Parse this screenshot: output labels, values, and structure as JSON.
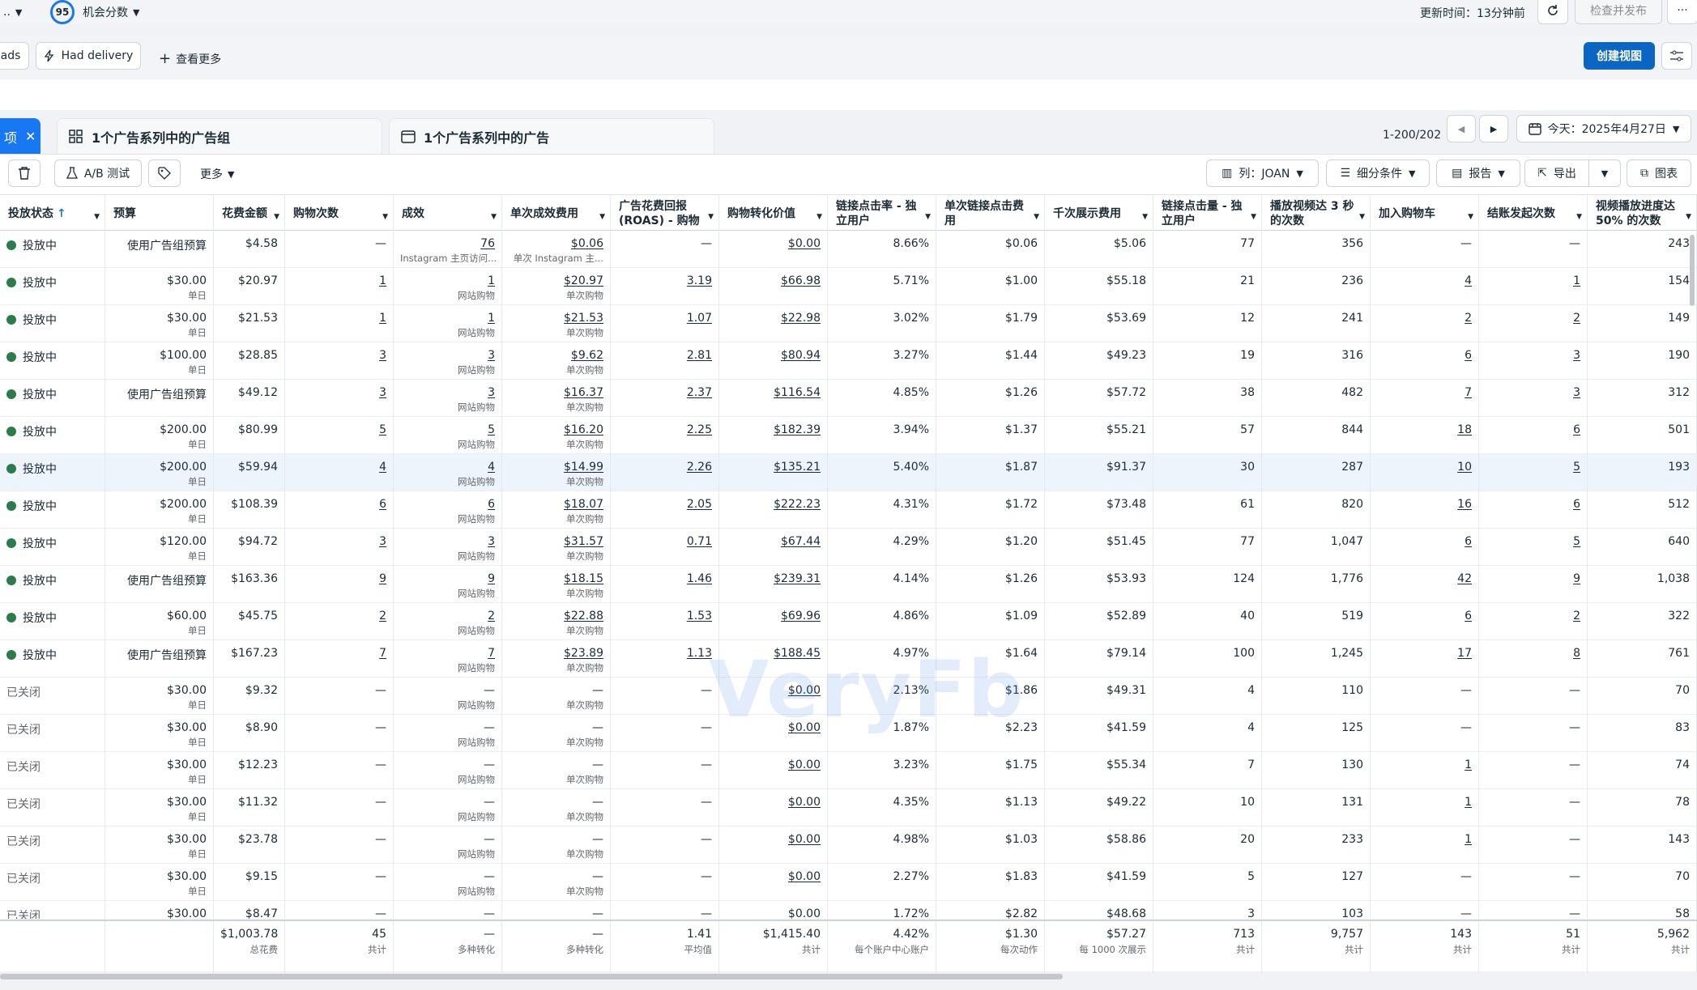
{
  "top": {
    "score": "95",
    "score_label": "机会分数",
    "update_time": "更新时间：13分钟前",
    "review_publish": "检查并发布",
    "more_icon": "more-icon"
  },
  "filters": {
    "chip_ads": "ads",
    "chip_delivery": "Had delivery",
    "view_more": "查看更多",
    "create_view": "创建视图"
  },
  "tabs": {
    "selected": "项",
    "adsets": "1个广告系列中的广告组",
    "ads": "1个广告系列中的广告",
    "pagination": "1-200/202",
    "date": "今天：2025年4月27日"
  },
  "toolbar": {
    "ab_test": "A/B 测试",
    "more": "更多",
    "columns": "列：JOAN",
    "breakdown": "细分条件",
    "report": "报告",
    "export": "导出",
    "chart": "图表"
  },
  "columns": [
    "投放状态",
    "预算",
    "花费金额",
    "购物次数",
    "成效",
    "单次成效费用",
    "广告花费回报 (ROAS) - 购物",
    "购物转化价值",
    "链接点击率 - 独立用户",
    "单次链接点击费用",
    "千次展示费用",
    "链接点击量 - 独立用户",
    "播放视频达 3 秒的次数",
    "加入购物车",
    "结账发起次数",
    "视频播放进度达 50% 的次数"
  ],
  "rows": [
    {
      "status": "投放中",
      "budget": "使用广告组预算",
      "budget_sub": "",
      "spend": "$4.58",
      "purchases": "—",
      "results": "76",
      "results_sub": "Instagram 主页访问...",
      "cpr": "$0.06",
      "cpr_sub": "单次 Instagram 主...",
      "roas": "—",
      "value": "$0.00",
      "ctr": "8.66%",
      "cpc": "$0.06",
      "cpm": "$5.06",
      "clicks": "77",
      "plays": "356",
      "atc": "—",
      "checkout": "—",
      "v50": "243"
    },
    {
      "status": "投放中",
      "budget": "$30.00",
      "budget_sub": "单日",
      "spend": "$20.97",
      "purchases": "1",
      "results": "1",
      "results_sub": "网站购物",
      "cpr": "$20.97",
      "cpr_sub": "单次购物",
      "roas": "3.19",
      "value": "$66.98",
      "ctr": "5.71%",
      "cpc": "$1.00",
      "cpm": "$55.18",
      "clicks": "21",
      "plays": "236",
      "atc": "4",
      "checkout": "1",
      "v50": "154"
    },
    {
      "status": "投放中",
      "budget": "$30.00",
      "budget_sub": "单日",
      "spend": "$21.53",
      "purchases": "1",
      "results": "1",
      "results_sub": "网站购物",
      "cpr": "$21.53",
      "cpr_sub": "单次购物",
      "roas": "1.07",
      "value": "$22.98",
      "ctr": "3.02%",
      "cpc": "$1.79",
      "cpm": "$53.69",
      "clicks": "12",
      "plays": "241",
      "atc": "2",
      "checkout": "2",
      "v50": "149"
    },
    {
      "status": "投放中",
      "budget": "$100.00",
      "budget_sub": "单日",
      "spend": "$28.85",
      "purchases": "3",
      "results": "3",
      "results_sub": "网站购物",
      "cpr": "$9.62",
      "cpr_sub": "单次购物",
      "roas": "2.81",
      "value": "$80.94",
      "ctr": "3.27%",
      "cpc": "$1.44",
      "cpm": "$49.23",
      "clicks": "19",
      "plays": "316",
      "atc": "6",
      "checkout": "3",
      "v50": "190"
    },
    {
      "status": "投放中",
      "budget": "使用广告组预算",
      "budget_sub": "",
      "spend": "$49.12",
      "purchases": "3",
      "results": "3",
      "results_sub": "网站购物",
      "cpr": "$16.37",
      "cpr_sub": "单次购物",
      "roas": "2.37",
      "value": "$116.54",
      "ctr": "4.85%",
      "cpc": "$1.26",
      "cpm": "$57.72",
      "clicks": "38",
      "plays": "482",
      "atc": "7",
      "checkout": "3",
      "v50": "312"
    },
    {
      "status": "投放中",
      "budget": "$200.00",
      "budget_sub": "单日",
      "spend": "$80.99",
      "purchases": "5",
      "results": "5",
      "results_sub": "网站购物",
      "cpr": "$16.20",
      "cpr_sub": "单次购物",
      "roas": "2.25",
      "value": "$182.39",
      "ctr": "3.94%",
      "cpc": "$1.37",
      "cpm": "$55.21",
      "clicks": "57",
      "plays": "844",
      "atc": "18",
      "checkout": "6",
      "v50": "501"
    },
    {
      "status": "投放中",
      "budget": "$200.00",
      "budget_sub": "单日",
      "spend": "$59.94",
      "purchases": "4",
      "results": "4",
      "results_sub": "网站购物",
      "cpr": "$14.99",
      "cpr_sub": "单次购物",
      "roas": "2.26",
      "value": "$135.21",
      "ctr": "5.40%",
      "cpc": "$1.87",
      "cpm": "$91.37",
      "clicks": "30",
      "plays": "287",
      "atc": "10",
      "checkout": "5",
      "v50": "193"
    },
    {
      "status": "投放中",
      "budget": "$200.00",
      "budget_sub": "单日",
      "spend": "$108.39",
      "purchases": "6",
      "results": "6",
      "results_sub": "网站购物",
      "cpr": "$18.07",
      "cpr_sub": "单次购物",
      "roas": "2.05",
      "value": "$222.23",
      "ctr": "4.31%",
      "cpc": "$1.72",
      "cpm": "$73.48",
      "clicks": "61",
      "plays": "820",
      "atc": "16",
      "checkout": "6",
      "v50": "512"
    },
    {
      "status": "投放中",
      "budget": "$120.00",
      "budget_sub": "单日",
      "spend": "$94.72",
      "purchases": "3",
      "results": "3",
      "results_sub": "网站购物",
      "cpr": "$31.57",
      "cpr_sub": "单次购物",
      "roas": "0.71",
      "value": "$67.44",
      "ctr": "4.29%",
      "cpc": "$1.20",
      "cpm": "$51.45",
      "clicks": "77",
      "plays": "1,047",
      "atc": "6",
      "checkout": "5",
      "v50": "640"
    },
    {
      "status": "投放中",
      "budget": "使用广告组预算",
      "budget_sub": "",
      "spend": "$163.36",
      "purchases": "9",
      "results": "9",
      "results_sub": "网站购物",
      "cpr": "$18.15",
      "cpr_sub": "单次购物",
      "roas": "1.46",
      "value": "$239.31",
      "ctr": "4.14%",
      "cpc": "$1.26",
      "cpm": "$53.93",
      "clicks": "124",
      "plays": "1,776",
      "atc": "42",
      "checkout": "9",
      "v50": "1,038"
    },
    {
      "status": "投放中",
      "budget": "$60.00",
      "budget_sub": "单日",
      "spend": "$45.75",
      "purchases": "2",
      "results": "2",
      "results_sub": "网站购物",
      "cpr": "$22.88",
      "cpr_sub": "单次购物",
      "roas": "1.53",
      "value": "$69.96",
      "ctr": "4.86%",
      "cpc": "$1.09",
      "cpm": "$52.89",
      "clicks": "40",
      "plays": "519",
      "atc": "6",
      "checkout": "2",
      "v50": "322"
    },
    {
      "status": "投放中",
      "budget": "使用广告组预算",
      "budget_sub": "",
      "spend": "$167.23",
      "purchases": "7",
      "results": "7",
      "results_sub": "网站购物",
      "cpr": "$23.89",
      "cpr_sub": "单次购物",
      "roas": "1.13",
      "value": "$188.45",
      "ctr": "4.97%",
      "cpc": "$1.64",
      "cpm": "$79.14",
      "clicks": "100",
      "plays": "1,245",
      "atc": "17",
      "checkout": "8",
      "v50": "761"
    },
    {
      "status": "已关闭",
      "budget": "$30.00",
      "budget_sub": "单日",
      "spend": "$9.32",
      "purchases": "—",
      "results": "—",
      "results_sub": "网站购物",
      "cpr": "—",
      "cpr_sub": "单次购物",
      "roas": "—",
      "value": "$0.00",
      "ctr": "2.13%",
      "cpc": "$1.86",
      "cpm": "$49.31",
      "clicks": "4",
      "plays": "110",
      "atc": "—",
      "checkout": "—",
      "v50": "70"
    },
    {
      "status": "已关闭",
      "budget": "$30.00",
      "budget_sub": "单日",
      "spend": "$8.90",
      "purchases": "—",
      "results": "—",
      "results_sub": "网站购物",
      "cpr": "—",
      "cpr_sub": "单次购物",
      "roas": "—",
      "value": "$0.00",
      "ctr": "1.87%",
      "cpc": "$2.23",
      "cpm": "$41.59",
      "clicks": "4",
      "plays": "125",
      "atc": "—",
      "checkout": "—",
      "v50": "83"
    },
    {
      "status": "已关闭",
      "budget": "$30.00",
      "budget_sub": "单日",
      "spend": "$12.23",
      "purchases": "—",
      "results": "—",
      "results_sub": "网站购物",
      "cpr": "—",
      "cpr_sub": "单次购物",
      "roas": "—",
      "value": "$0.00",
      "ctr": "3.23%",
      "cpc": "$1.75",
      "cpm": "$55.34",
      "clicks": "7",
      "plays": "130",
      "atc": "1",
      "checkout": "—",
      "v50": "74"
    },
    {
      "status": "已关闭",
      "budget": "$30.00",
      "budget_sub": "单日",
      "spend": "$11.32",
      "purchases": "—",
      "results": "—",
      "results_sub": "网站购物",
      "cpr": "—",
      "cpr_sub": "单次购物",
      "roas": "—",
      "value": "$0.00",
      "ctr": "4.35%",
      "cpc": "$1.13",
      "cpm": "$49.22",
      "clicks": "10",
      "plays": "131",
      "atc": "1",
      "checkout": "—",
      "v50": "78"
    },
    {
      "status": "已关闭",
      "budget": "$30.00",
      "budget_sub": "单日",
      "spend": "$23.78",
      "purchases": "—",
      "results": "—",
      "results_sub": "网站购物",
      "cpr": "—",
      "cpr_sub": "单次购物",
      "roas": "—",
      "value": "$0.00",
      "ctr": "4.98%",
      "cpc": "$1.03",
      "cpm": "$58.86",
      "clicks": "20",
      "plays": "233",
      "atc": "1",
      "checkout": "—",
      "v50": "143"
    },
    {
      "status": "已关闭",
      "budget": "$30.00",
      "budget_sub": "单日",
      "spend": "$9.15",
      "purchases": "—",
      "results": "—",
      "results_sub": "网站购物",
      "cpr": "—",
      "cpr_sub": "单次购物",
      "roas": "—",
      "value": "$0.00",
      "ctr": "2.27%",
      "cpc": "$1.83",
      "cpm": "$41.59",
      "clicks": "5",
      "plays": "127",
      "atc": "—",
      "checkout": "—",
      "v50": "70"
    },
    {
      "status": "已关闭",
      "budget": "$30.00",
      "budget_sub": "",
      "spend": "$8.47",
      "purchases": "—",
      "results": "—",
      "results_sub": "",
      "cpr": "—",
      "cpr_sub": "",
      "roas": "—",
      "value": "$0.00",
      "ctr": "1.72%",
      "cpc": "$2.82",
      "cpm": "$48.68",
      "clicks": "3",
      "plays": "103",
      "atc": "—",
      "checkout": "—",
      "v50": "58"
    }
  ],
  "totals": {
    "spend": "$1,003.78",
    "spend_sub": "总花费",
    "purchases": "45",
    "purchases_sub": "共计",
    "results": "—",
    "results_sub": "多种转化",
    "cpr": "—",
    "cpr_sub": "多种转化",
    "roas": "1.41",
    "roas_sub": "平均值",
    "value": "$1,415.40",
    "value_sub": "共计",
    "ctr": "4.42%",
    "ctr_sub": "每个账户中心账户",
    "cpc": "$1.30",
    "cpc_sub": "每次动作",
    "cpm": "$57.27",
    "cpm_sub": "每 1000 次展示",
    "clicks": "713",
    "clicks_sub": "共计",
    "plays": "9,757",
    "plays_sub": "共计",
    "atc": "143",
    "atc_sub": "共计",
    "checkout": "51",
    "checkout_sub": "共计",
    "v50": "5,962",
    "v50_sub": "共计"
  },
  "watermark": "VeryFb"
}
